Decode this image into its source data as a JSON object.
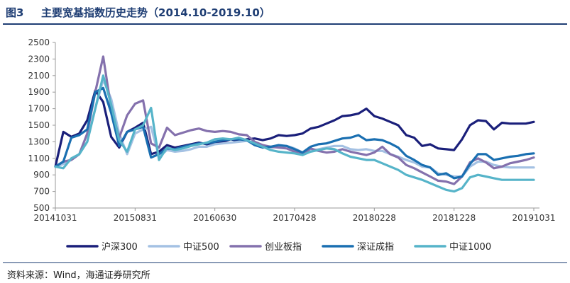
{
  "figure": {
    "number": "图3",
    "title": "主要宽基指数历史走势（2014.10-2019.10）"
  },
  "source": "资料来源：Wind，海通证券研究所",
  "chart_data": {
    "type": "line",
    "title": "",
    "xlabel": "",
    "ylabel": "",
    "ylim": [
      500,
      2500
    ],
    "yticks": [
      500,
      700,
      900,
      1100,
      1300,
      1500,
      1700,
      1900,
      2100,
      2300,
      2500
    ],
    "xtick_labels": [
      "20141031",
      "20150831",
      "20160630",
      "20170428",
      "20180228",
      "20181228",
      "20191031"
    ],
    "grid": false,
    "legend_position": "bottom",
    "x": [
      "2014-10",
      "2014-11",
      "2014-12",
      "2015-01",
      "2015-02",
      "2015-03",
      "2015-04",
      "2015-05",
      "2015-06",
      "2015-07",
      "2015-08",
      "2015-09",
      "2015-10",
      "2015-11",
      "2015-12",
      "2016-01",
      "2016-02",
      "2016-03",
      "2016-04",
      "2016-05",
      "2016-06",
      "2016-07",
      "2016-08",
      "2016-09",
      "2016-10",
      "2016-11",
      "2016-12",
      "2017-01",
      "2017-02",
      "2017-03",
      "2017-04",
      "2017-05",
      "2017-06",
      "2017-07",
      "2017-08",
      "2017-09",
      "2017-10",
      "2017-11",
      "2017-12",
      "2018-01",
      "2018-02",
      "2018-03",
      "2018-04",
      "2018-05",
      "2018-06",
      "2018-07",
      "2018-08",
      "2018-09",
      "2018-10",
      "2018-11",
      "2018-12",
      "2019-01",
      "2019-02",
      "2019-03",
      "2019-04",
      "2019-05",
      "2019-06",
      "2019-07",
      "2019-08",
      "2019-09",
      "2019-10"
    ],
    "series": [
      {
        "name": "沪深300",
        "color": "#1a1f7a",
        "values": [
          1000,
          1420,
          1360,
          1400,
          1560,
          1920,
          1780,
          1360,
          1230,
          1420,
          1470,
          1530,
          1150,
          1180,
          1260,
          1230,
          1250,
          1270,
          1290,
          1270,
          1290,
          1300,
          1330,
          1310,
          1330,
          1340,
          1320,
          1340,
          1380,
          1370,
          1380,
          1400,
          1460,
          1480,
          1520,
          1560,
          1610,
          1620,
          1640,
          1700,
          1610,
          1580,
          1540,
          1500,
          1380,
          1350,
          1250,
          1270,
          1220,
          1210,
          1200,
          1330,
          1500,
          1560,
          1550,
          1450,
          1530,
          1520,
          1520,
          1520,
          1540
        ]
      },
      {
        "name": "中证500",
        "color": "#a4c1e3",
        "values": [
          1000,
          1030,
          1080,
          1150,
          1300,
          1700,
          2050,
          1820,
          1400,
          1150,
          1400,
          1450,
          1480,
          1120,
          1200,
          1180,
          1190,
          1210,
          1240,
          1240,
          1270,
          1280,
          1290,
          1300,
          1310,
          1290,
          1260,
          1230,
          1240,
          1250,
          1220,
          1170,
          1190,
          1210,
          1230,
          1250,
          1250,
          1210,
          1200,
          1210,
          1190,
          1190,
          1150,
          1120,
          1080,
          1050,
          1000,
          990,
          920,
          900,
          880,
          880,
          1000,
          1060,
          1060,
          1020,
          1000,
          990,
          990,
          990,
          990
        ]
      },
      {
        "name": "创业板指",
        "color": "#8471ad",
        "values": [
          1000,
          1060,
          1080,
          1150,
          1400,
          1900,
          2330,
          1700,
          1350,
          1620,
          1760,
          1800,
          1280,
          1230,
          1470,
          1380,
          1410,
          1440,
          1460,
          1430,
          1420,
          1430,
          1420,
          1390,
          1380,
          1300,
          1260,
          1240,
          1230,
          1220,
          1180,
          1150,
          1220,
          1190,
          1170,
          1180,
          1210,
          1180,
          1160,
          1140,
          1170,
          1240,
          1150,
          1110,
          1020,
          980,
          930,
          880,
          830,
          820,
          790,
          880,
          1050,
          1100,
          1050,
          980,
          1000,
          1040,
          1060,
          1080,
          1110
        ]
      },
      {
        "name": "深证成指",
        "color": "#1a6fb1",
        "values": [
          1000,
          1060,
          1350,
          1380,
          1450,
          1900,
          1950,
          1650,
          1250,
          1420,
          1450,
          1480,
          1110,
          1150,
          1220,
          1210,
          1240,
          1260,
          1280,
          1280,
          1300,
          1320,
          1330,
          1330,
          1320,
          1260,
          1230,
          1240,
          1260,
          1250,
          1210,
          1170,
          1240,
          1270,
          1280,
          1310,
          1340,
          1350,
          1380,
          1320,
          1330,
          1320,
          1280,
          1230,
          1130,
          1080,
          1020,
          990,
          900,
          920,
          860,
          880,
          1030,
          1150,
          1150,
          1080,
          1100,
          1120,
          1130,
          1150,
          1160
        ]
      },
      {
        "name": "中证1000",
        "color": "#56b4c9",
        "values": [
          1000,
          980,
          1100,
          1150,
          1300,
          1700,
          2100,
          1750,
          1320,
          1180,
          1450,
          1500,
          1710,
          1080,
          1230,
          1200,
          1220,
          1250,
          1270,
          1290,
          1330,
          1340,
          1330,
          1350,
          1320,
          1280,
          1240,
          1200,
          1180,
          1170,
          1160,
          1140,
          1180,
          1200,
          1220,
          1210,
          1160,
          1120,
          1100,
          1080,
          1080,
          1040,
          1000,
          960,
          900,
          870,
          840,
          800,
          760,
          720,
          700,
          740,
          870,
          900,
          880,
          860,
          840,
          840,
          840,
          840,
          840
        ]
      }
    ]
  }
}
